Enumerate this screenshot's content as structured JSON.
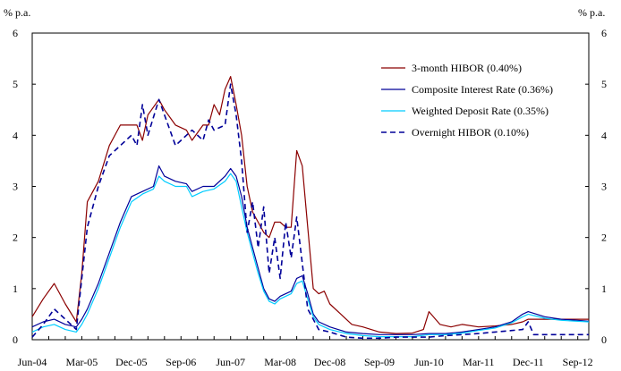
{
  "chart_data": {
    "type": "line",
    "y_unit_left": "% p.a.",
    "y_unit_right": "% p.a.",
    "ylim": [
      0,
      6
    ],
    "y_ticks": [
      "0",
      "1",
      "2",
      "3",
      "4",
      "5",
      "6"
    ],
    "x_tick_labels": [
      "Jun-04",
      "Mar-05",
      "Dec-05",
      "Sep-06",
      "Jun-07",
      "Mar-08",
      "Dec-08",
      "Sep-09",
      "Jun-10",
      "Mar-11",
      "Dec-11",
      "Sep-12"
    ],
    "x_start": "Jun-04",
    "x_end": "Nov-12",
    "grid": false,
    "legend_position": "top-right",
    "series": [
      {
        "name": "3-month HIBOR (0.40%)",
        "color": "#8b0000",
        "dash": "solid",
        "points": [
          [
            "Jun-04",
            0.45
          ],
          [
            "Aug-04",
            0.8
          ],
          [
            "Oct-04",
            1.1
          ],
          [
            "Dec-04",
            0.7
          ],
          [
            "Feb-05",
            0.35
          ],
          [
            "Mar-05",
            1.3
          ],
          [
            "Apr-05",
            2.7
          ],
          [
            "Jun-05",
            3.1
          ],
          [
            "Aug-05",
            3.8
          ],
          [
            "Oct-05",
            4.2
          ],
          [
            "Dec-05",
            4.2
          ],
          [
            "Jan-06",
            4.2
          ],
          [
            "Feb-06",
            3.9
          ],
          [
            "Mar-06",
            4.4
          ],
          [
            "May-06",
            4.7
          ],
          [
            "Jun-06",
            4.5
          ],
          [
            "Aug-06",
            4.2
          ],
          [
            "Oct-06",
            4.1
          ],
          [
            "Nov-06",
            3.9
          ],
          [
            "Jan-07",
            4.2
          ],
          [
            "Feb-07",
            4.2
          ],
          [
            "Mar-07",
            4.6
          ],
          [
            "Apr-07",
            4.4
          ],
          [
            "May-07",
            4.9
          ],
          [
            "Jun-07",
            5.15
          ],
          [
            "Jul-07",
            4.6
          ],
          [
            "Aug-07",
            4.0
          ],
          [
            "Sep-07",
            3.0
          ],
          [
            "Oct-07",
            2.5
          ],
          [
            "Nov-07",
            2.3
          ],
          [
            "Dec-07",
            2.1
          ],
          [
            "Jan-08",
            2.0
          ],
          [
            "Feb-08",
            2.3
          ],
          [
            "Mar-08",
            2.3
          ],
          [
            "Apr-08",
            2.2
          ],
          [
            "May-08",
            2.2
          ],
          [
            "Jun-08",
            3.7
          ],
          [
            "Jul-08",
            3.4
          ],
          [
            "Aug-08",
            2.2
          ],
          [
            "Sep-08",
            1.0
          ],
          [
            "Oct-08",
            0.9
          ],
          [
            "Nov-08",
            0.95
          ],
          [
            "Dec-08",
            0.7
          ],
          [
            "Feb-09",
            0.5
          ],
          [
            "Apr-09",
            0.3
          ],
          [
            "Jun-09",
            0.25
          ],
          [
            "Sep-09",
            0.15
          ],
          [
            "Dec-09",
            0.12
          ],
          [
            "Mar-10",
            0.13
          ],
          [
            "May-10",
            0.2
          ],
          [
            "Jun-10",
            0.55
          ],
          [
            "Aug-10",
            0.3
          ],
          [
            "Oct-10",
            0.25
          ],
          [
            "Dec-10",
            0.3
          ],
          [
            "Mar-11",
            0.25
          ],
          [
            "Jun-11",
            0.27
          ],
          [
            "Sep-11",
            0.3
          ],
          [
            "Nov-11",
            0.35
          ],
          [
            "Dec-11",
            0.4
          ],
          [
            "Mar-12",
            0.4
          ],
          [
            "Jun-12",
            0.4
          ],
          [
            "Sep-12",
            0.4
          ],
          [
            "Nov-12",
            0.4
          ]
        ]
      },
      {
        "name": "Composite Interest Rate (0.36%)",
        "color": "#000099",
        "dash": "solid",
        "points": [
          [
            "Jun-04",
            0.25
          ],
          [
            "Aug-04",
            0.35
          ],
          [
            "Oct-04",
            0.4
          ],
          [
            "Dec-04",
            0.3
          ],
          [
            "Feb-05",
            0.25
          ],
          [
            "Mar-05",
            0.4
          ],
          [
            "Apr-05",
            0.6
          ],
          [
            "Jun-05",
            1.1
          ],
          [
            "Aug-05",
            1.7
          ],
          [
            "Oct-05",
            2.3
          ],
          [
            "Dec-05",
            2.8
          ],
          [
            "Feb-06",
            2.9
          ],
          [
            "Apr-06",
            3.0
          ],
          [
            "May-06",
            3.4
          ],
          [
            "Jun-06",
            3.2
          ],
          [
            "Aug-06",
            3.1
          ],
          [
            "Oct-06",
            3.05
          ],
          [
            "Nov-06",
            2.9
          ],
          [
            "Jan-07",
            3.0
          ],
          [
            "Mar-07",
            3.0
          ],
          [
            "May-07",
            3.2
          ],
          [
            "Jun-07",
            3.35
          ],
          [
            "Jul-07",
            3.2
          ],
          [
            "Aug-07",
            2.8
          ],
          [
            "Sep-07",
            2.2
          ],
          [
            "Oct-07",
            1.8
          ],
          [
            "Nov-07",
            1.4
          ],
          [
            "Dec-07",
            1.0
          ],
          [
            "Jan-08",
            0.8
          ],
          [
            "Feb-08",
            0.75
          ],
          [
            "Mar-08",
            0.85
          ],
          [
            "May-08",
            0.95
          ],
          [
            "Jun-08",
            1.2
          ],
          [
            "Jul-08",
            1.25
          ],
          [
            "Aug-08",
            0.9
          ],
          [
            "Sep-08",
            0.5
          ],
          [
            "Oct-08",
            0.35
          ],
          [
            "Dec-08",
            0.25
          ],
          [
            "Mar-09",
            0.15
          ],
          [
            "Jun-09",
            0.12
          ],
          [
            "Sep-09",
            0.1
          ],
          [
            "Dec-09",
            0.1
          ],
          [
            "Mar-10",
            0.1
          ],
          [
            "Jun-10",
            0.12
          ],
          [
            "Sep-10",
            0.12
          ],
          [
            "Dec-10",
            0.15
          ],
          [
            "Mar-11",
            0.2
          ],
          [
            "Jun-11",
            0.25
          ],
          [
            "Sep-11",
            0.35
          ],
          [
            "Nov-11",
            0.5
          ],
          [
            "Dec-11",
            0.55
          ],
          [
            "Mar-12",
            0.45
          ],
          [
            "Jun-12",
            0.4
          ],
          [
            "Sep-12",
            0.38
          ],
          [
            "Nov-12",
            0.36
          ]
        ]
      },
      {
        "name": "Weighted Deposit Rate (0.35%)",
        "color": "#00ccff",
        "dash": "solid",
        "points": [
          [
            "Jun-04",
            0.15
          ],
          [
            "Aug-04",
            0.25
          ],
          [
            "Oct-04",
            0.3
          ],
          [
            "Dec-04",
            0.2
          ],
          [
            "Feb-05",
            0.15
          ],
          [
            "Mar-05",
            0.3
          ],
          [
            "Apr-05",
            0.5
          ],
          [
            "Jun-05",
            1.0
          ],
          [
            "Aug-05",
            1.6
          ],
          [
            "Oct-05",
            2.2
          ],
          [
            "Dec-05",
            2.7
          ],
          [
            "Feb-06",
            2.85
          ],
          [
            "Apr-06",
            2.95
          ],
          [
            "May-06",
            3.2
          ],
          [
            "Jun-06",
            3.1
          ],
          [
            "Aug-06",
            3.0
          ],
          [
            "Oct-06",
            3.0
          ],
          [
            "Nov-06",
            2.8
          ],
          [
            "Jan-07",
            2.9
          ],
          [
            "Mar-07",
            2.95
          ],
          [
            "May-07",
            3.1
          ],
          [
            "Jun-07",
            3.25
          ],
          [
            "Jul-07",
            3.1
          ],
          [
            "Aug-07",
            2.6
          ],
          [
            "Sep-07",
            2.1
          ],
          [
            "Oct-07",
            1.7
          ],
          [
            "Nov-07",
            1.3
          ],
          [
            "Dec-07",
            0.95
          ],
          [
            "Jan-08",
            0.75
          ],
          [
            "Feb-08",
            0.7
          ],
          [
            "Mar-08",
            0.8
          ],
          [
            "May-08",
            0.9
          ],
          [
            "Jun-08",
            1.1
          ],
          [
            "Jul-08",
            1.15
          ],
          [
            "Aug-08",
            0.8
          ],
          [
            "Sep-08",
            0.45
          ],
          [
            "Oct-08",
            0.3
          ],
          [
            "Dec-08",
            0.2
          ],
          [
            "Mar-09",
            0.12
          ],
          [
            "Jun-09",
            0.08
          ],
          [
            "Sep-09",
            0.06
          ],
          [
            "Dec-09",
            0.06
          ],
          [
            "Mar-10",
            0.06
          ],
          [
            "Jun-10",
            0.1
          ],
          [
            "Sep-10",
            0.1
          ],
          [
            "Dec-10",
            0.13
          ],
          [
            "Mar-11",
            0.18
          ],
          [
            "Jun-11",
            0.23
          ],
          [
            "Sep-11",
            0.33
          ],
          [
            "Nov-11",
            0.45
          ],
          [
            "Dec-11",
            0.5
          ],
          [
            "Mar-12",
            0.42
          ],
          [
            "Jun-12",
            0.38
          ],
          [
            "Sep-12",
            0.36
          ],
          [
            "Nov-12",
            0.35
          ]
        ]
      },
      {
        "name": "Overnight HIBOR (0.10%)",
        "color": "#000099",
        "dash": "dashed",
        "points": [
          [
            "Jun-04",
            0.05
          ],
          [
            "Aug-04",
            0.3
          ],
          [
            "Oct-04",
            0.6
          ],
          [
            "Dec-04",
            0.4
          ],
          [
            "Feb-05",
            0.2
          ],
          [
            "Mar-05",
            1.2
          ],
          [
            "Apr-05",
            2.2
          ],
          [
            "Jun-05",
            3.0
          ],
          [
            "Aug-05",
            3.6
          ],
          [
            "Oct-05",
            3.8
          ],
          [
            "Dec-05",
            4.0
          ],
          [
            "Jan-06",
            3.8
          ],
          [
            "Feb-06",
            4.6
          ],
          [
            "Mar-06",
            4.0
          ],
          [
            "May-06",
            4.7
          ],
          [
            "Jun-06",
            4.4
          ],
          [
            "Aug-06",
            3.8
          ],
          [
            "Oct-06",
            4.0
          ],
          [
            "Nov-06",
            4.1
          ],
          [
            "Jan-07",
            3.9
          ],
          [
            "Feb-07",
            4.3
          ],
          [
            "Mar-07",
            4.1
          ],
          [
            "May-07",
            4.2
          ],
          [
            "Jun-07",
            5.0
          ],
          [
            "Jul-07",
            4.4
          ],
          [
            "Aug-07",
            3.5
          ],
          [
            "Sep-07",
            2.1
          ],
          [
            "Oct-07",
            2.7
          ],
          [
            "Nov-07",
            1.8
          ],
          [
            "Dec-07",
            2.6
          ],
          [
            "Jan-08",
            1.3
          ],
          [
            "Feb-08",
            2.0
          ],
          [
            "Mar-08",
            1.2
          ],
          [
            "Apr-08",
            2.3
          ],
          [
            "May-08",
            1.6
          ],
          [
            "Jun-08",
            2.4
          ],
          [
            "Jul-08",
            1.5
          ],
          [
            "Aug-08",
            0.6
          ],
          [
            "Sep-08",
            0.4
          ],
          [
            "Oct-08",
            0.2
          ],
          [
            "Dec-08",
            0.15
          ],
          [
            "Mar-09",
            0.05
          ],
          [
            "Jun-09",
            0.03
          ],
          [
            "Sep-09",
            0.03
          ],
          [
            "Dec-09",
            0.05
          ],
          [
            "Mar-10",
            0.05
          ],
          [
            "Jun-10",
            0.05
          ],
          [
            "Sep-10",
            0.08
          ],
          [
            "Dec-10",
            0.1
          ],
          [
            "Mar-11",
            0.12
          ],
          [
            "Jun-11",
            0.15
          ],
          [
            "Sep-11",
            0.18
          ],
          [
            "Nov-11",
            0.2
          ],
          [
            "Dec-11",
            0.35
          ],
          [
            "Jan-12",
            0.1
          ],
          [
            "Mar-12",
            0.1
          ],
          [
            "Jun-12",
            0.1
          ],
          [
            "Sep-12",
            0.1
          ],
          [
            "Nov-12",
            0.1
          ]
        ]
      }
    ]
  }
}
